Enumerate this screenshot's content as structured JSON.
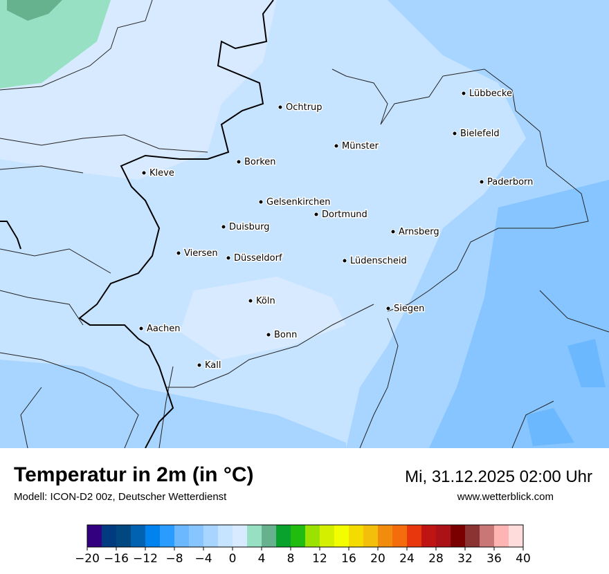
{
  "header": {
    "title": "Temperatur in 2m (in °C)",
    "subtitle": "Modell: ICON-D2 00z, Deutscher Wetterdienst",
    "datetime": "Mi, 31.12.2025 02:00 Uhr",
    "website": "www.wetterblick.com"
  },
  "map": {
    "cities": [
      "Lübbecke",
      "Ochtrup",
      "Bielefeld",
      "Münster",
      "Borken",
      "Kleve",
      "Paderborn",
      "Gelsenkirchen",
      "Dortmund",
      "Duisburg",
      "Arnsberg",
      "Viersen",
      "Düsseldorf",
      "Lüdenscheid",
      "Köln",
      "Siegen",
      "Aachen",
      "Bonn",
      "Kall"
    ]
  },
  "legend": {
    "min": -20,
    "max": 40,
    "step": 2,
    "tick_labels": [
      "−20",
      "−16",
      "−12",
      "−8",
      "−4",
      "0",
      "4",
      "8",
      "12",
      "16",
      "20",
      "24",
      "28",
      "32",
      "36",
      "40"
    ],
    "colors": [
      "#33007f",
      "#003b80",
      "#00487f",
      "#0062b0",
      "#0082ef",
      "#2a9bff",
      "#6cb8ff",
      "#86c5ff",
      "#a8d5ff",
      "#c6e3ff",
      "#d8eaff",
      "#98e0c4",
      "#66b28e",
      "#08a22d",
      "#20bd10",
      "#9be200",
      "#d4f000",
      "#f4fc00",
      "#f5dc00",
      "#f3bf0a",
      "#f18c0c",
      "#f46d0d",
      "#e8370c",
      "#be1514",
      "#ab1218",
      "#7a0000",
      "#8b3232",
      "#c87676",
      "#ffb4b4",
      "#ffdcdc"
    ]
  }
}
